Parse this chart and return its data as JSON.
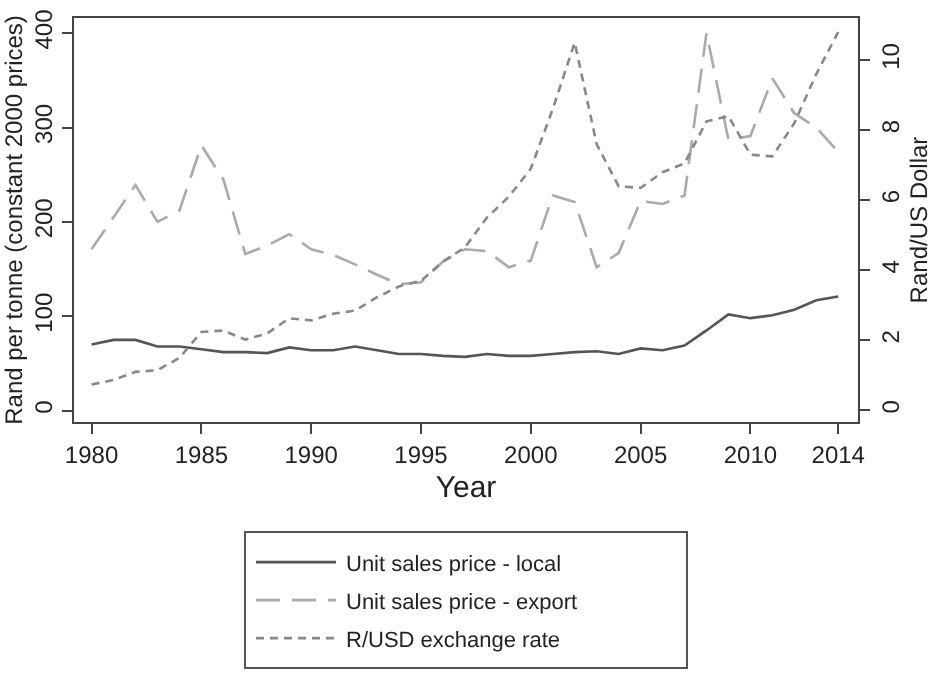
{
  "chart_data": {
    "type": "line",
    "xlabel": "Year",
    "ylabel": "Rand per tonne (constant 2000 prices)",
    "y2label": "Rand/US Dollar",
    "x": [
      1980,
      1981,
      1982,
      1983,
      1984,
      1985,
      1986,
      1987,
      1988,
      1989,
      1990,
      1991,
      1992,
      1993,
      1994,
      1995,
      1996,
      1997,
      1998,
      1999,
      2000,
      2001,
      2002,
      2003,
      2004,
      2005,
      2006,
      2007,
      2008,
      2009,
      2010,
      2011,
      2012,
      2013,
      2014
    ],
    "series": [
      {
        "name": "Unit sales price - local",
        "color": "#555555",
        "line_style": "solid",
        "values": [
          70,
          75,
          75,
          68,
          68,
          65,
          62,
          62,
          61,
          67,
          64,
          64,
          68,
          64,
          60,
          60,
          58,
          57,
          60,
          58,
          58,
          60,
          62,
          63,
          60,
          66,
          64,
          69,
          85,
          102,
          98,
          101,
          107,
          117,
          121
        ]
      },
      {
        "name": "Unit sales price - export",
        "color": "#aaaaaa",
        "line_style": "dashed",
        "values": [
          171,
          205,
          239,
          200,
          212,
          281,
          245,
          166,
          175,
          187,
          171,
          165,
          155,
          144,
          134,
          136,
          158,
          171,
          169,
          152,
          159,
          228,
          221,
          152,
          167,
          222,
          219,
          228,
          400,
          287,
          291,
          352,
          315,
          300,
          274
        ]
      },
      {
        "name": "R/USD exchange rate",
        "color": "#888888",
        "line_style": "dotted",
        "axis": "y2",
        "values": [
          0.74,
          0.87,
          1.1,
          1.15,
          1.5,
          2.24,
          2.28,
          2.02,
          2.2,
          2.63,
          2.57,
          2.76,
          2.85,
          3.23,
          3.54,
          3.7,
          4.25,
          4.65,
          5.5,
          6.1,
          6.9,
          8.6,
          10.5,
          7.6,
          6.4,
          6.35,
          6.8,
          7.05,
          8.25,
          8.4,
          7.3,
          7.25,
          8.2,
          9.6,
          10.8
        ]
      }
    ],
    "xlim": [
      1979.2,
      2014.9
    ],
    "xticks": [
      1980,
      1985,
      1990,
      1995,
      2000,
      2005,
      2010,
      2014
    ],
    "ylim": [
      -12,
      416
    ],
    "yticks": [
      0,
      100,
      200,
      300,
      400
    ],
    "y2lim": [
      -0.33,
      11.2
    ],
    "y2ticks": [
      0,
      2,
      4,
      6,
      8,
      10
    ],
    "legend": "bottom",
    "marker": "none"
  }
}
